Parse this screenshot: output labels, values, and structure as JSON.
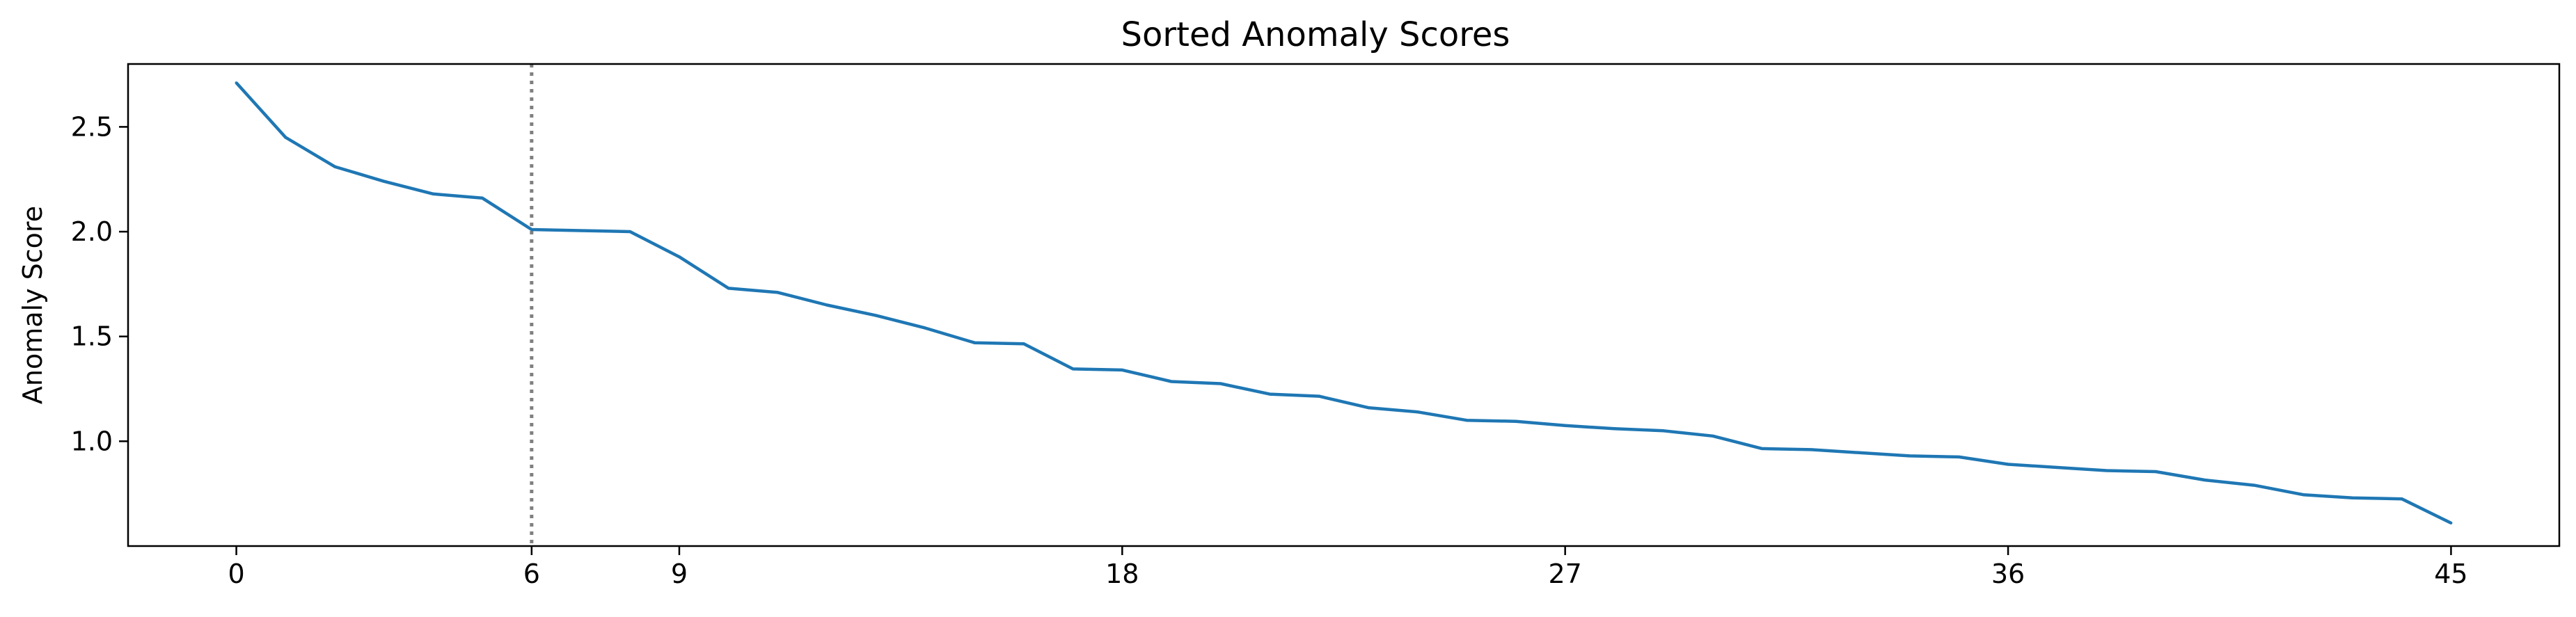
{
  "chart_data": {
    "type": "line",
    "title": "Sorted Anomaly Scores",
    "xlabel": "",
    "ylabel": "Anomaly Score",
    "xlim": [
      -2.2,
      47.2
    ],
    "ylim": [
      0.5,
      2.8
    ],
    "x_ticks": [
      0,
      6,
      9,
      18,
      27,
      36,
      45
    ],
    "y_ticks": [
      1.0,
      1.5,
      2.0,
      2.5
    ],
    "y_tick_labels": [
      "1.0",
      "1.5",
      "2.0",
      "2.5"
    ],
    "grid": false,
    "line_color": "#1f77b4",
    "vline": {
      "x": 6,
      "style": "dotted",
      "color": "#808080"
    },
    "series": [
      {
        "x": [
          0,
          1,
          2,
          3,
          4,
          5,
          6,
          7,
          8,
          9,
          10,
          11,
          12,
          13,
          14,
          15,
          16,
          17,
          18,
          19,
          20,
          21,
          22,
          23,
          24,
          25,
          26,
          27,
          28,
          29,
          30,
          31,
          32,
          33,
          34,
          35,
          36,
          37,
          38,
          39,
          40,
          41,
          42,
          43,
          44,
          45
        ],
        "values": [
          2.71,
          2.45,
          2.31,
          2.24,
          2.18,
          2.16,
          2.01,
          2.005,
          2.0,
          1.88,
          1.73,
          1.71,
          1.65,
          1.6,
          1.54,
          1.47,
          1.465,
          1.345,
          1.34,
          1.285,
          1.275,
          1.225,
          1.215,
          1.16,
          1.14,
          1.1,
          1.095,
          1.075,
          1.06,
          1.05,
          1.025,
          0.965,
          0.96,
          0.945,
          0.93,
          0.925,
          0.89,
          0.875,
          0.86,
          0.855,
          0.815,
          0.79,
          0.745,
          0.73,
          0.725,
          0.61
        ]
      }
    ]
  }
}
